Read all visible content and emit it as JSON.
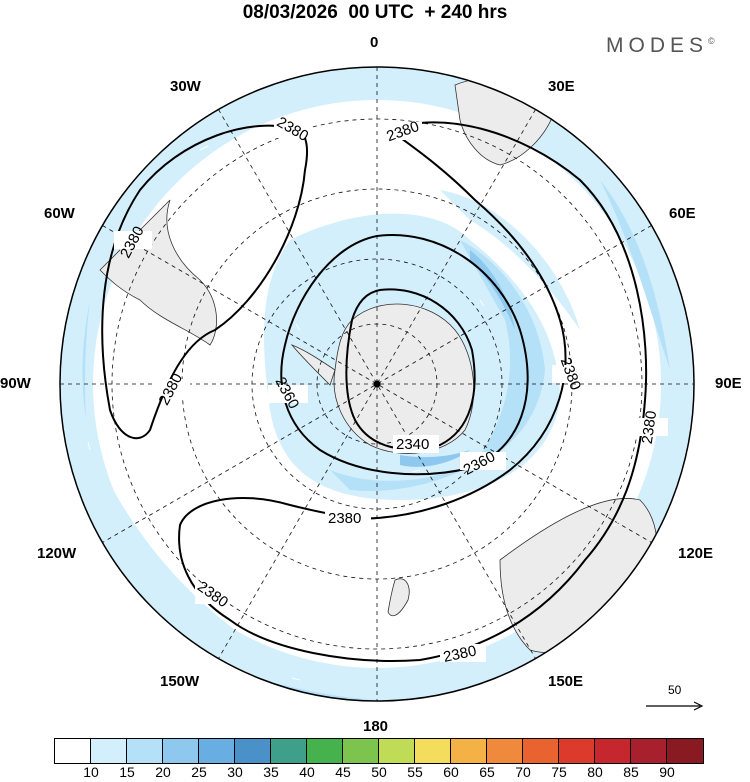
{
  "title": "08/03/2026  00 UTC  + 240 hrs",
  "brand": "MODES",
  "brand_mark": "©",
  "lon_labels": {
    "0": "0",
    "30E": "30E",
    "60E": "60E",
    "90E": "90E",
    "120E": "120E",
    "150E": "150E",
    "180": "180",
    "150W": "150W",
    "120W": "120W",
    "90W": "90W",
    "60W": "60W",
    "30W": "30W"
  },
  "contour_labels": {
    "c2380": "2380",
    "c2360": "2360",
    "c2340": "2340"
  },
  "vector_scale": "50",
  "colorbar": {
    "colors": [
      "#ffffff",
      "#d4effc",
      "#b4e0f8",
      "#8ec8ef",
      "#68aee3",
      "#4a91c9",
      "#3fa08a",
      "#45b24e",
      "#7dc44e",
      "#c0db55",
      "#f4dd5d",
      "#f4b146",
      "#ef8a3c",
      "#e8632f",
      "#dc3b2c",
      "#c6262d",
      "#a8202d",
      "#8a1a22"
    ],
    "ticks": [
      "10",
      "15",
      "20",
      "25",
      "30",
      "35",
      "40",
      "45",
      "50",
      "55",
      "60",
      "65",
      "70",
      "75",
      "80",
      "85",
      "90"
    ]
  },
  "colors": {
    "land": "#ececec",
    "coast": "#333333",
    "grid": "#111111"
  }
}
